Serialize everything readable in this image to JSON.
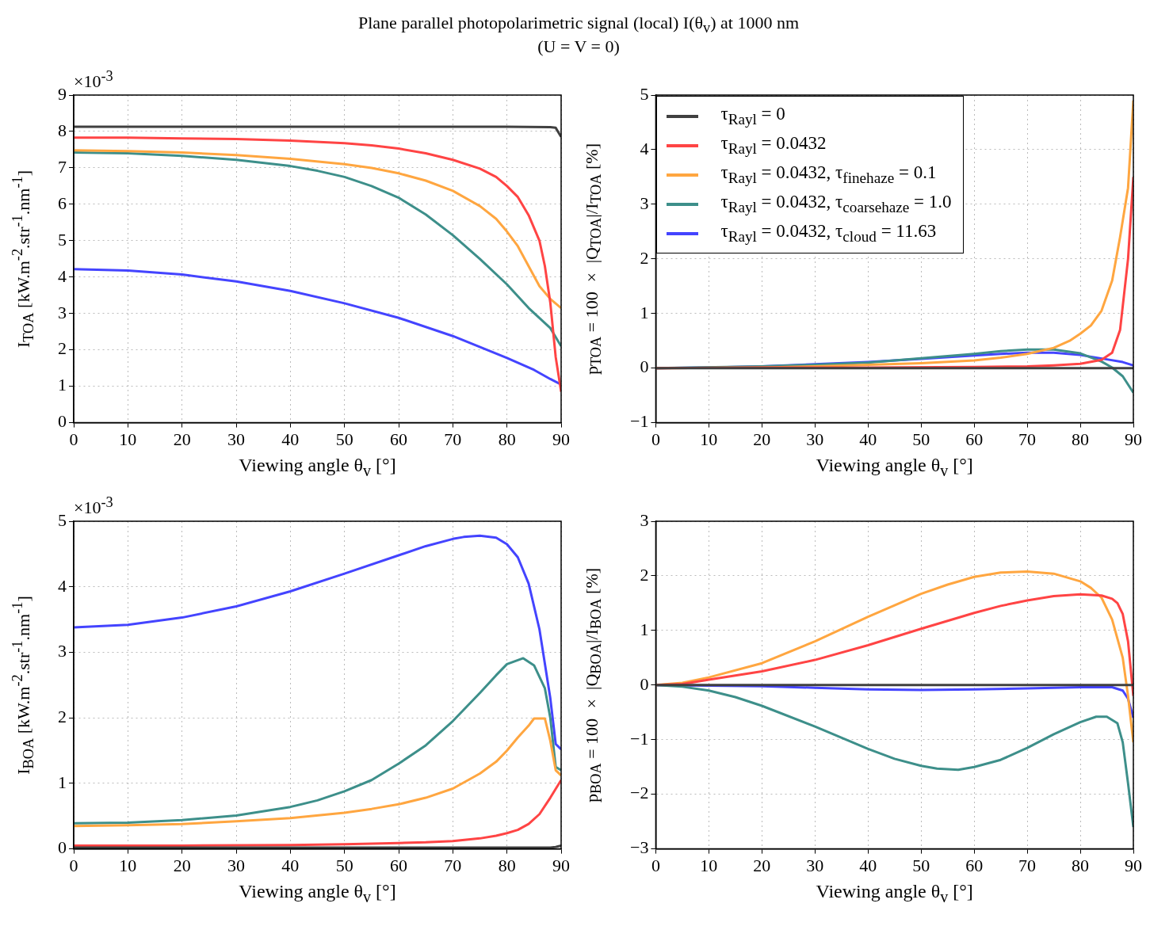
{
  "chart_data": [
    {
      "type": "line",
      "title": "Plane parallel photopolarimetric signal (local) I(θ$_{v}$) at 1000 nm",
      "subtitle": "(U = V = 0)",
      "xlabel": "Viewing angle θ$_{v}$ [°]",
      "ylabel": "I$_{TOA}$ [kW.m$^{-2}$.str$^{-1}$.nm$^{-1}$]",
      "annotations": [
        "×10$^{-3}$"
      ],
      "xlim": [
        0,
        90
      ],
      "xticks": [
        0,
        10,
        20,
        30,
        40,
        50,
        60,
        70,
        80,
        90
      ],
      "ylim": [
        0,
        9
      ],
      "yticks": [
        0,
        1,
        2,
        3,
        4,
        5,
        6,
        7,
        8,
        9
      ],
      "grid": true,
      "legend": false,
      "marker": "none",
      "line_style": "solid",
      "series": [
        {
          "color": "#404040",
          "x": [
            0,
            20,
            40,
            60,
            80,
            88,
            89,
            90
          ],
          "values": [
            8.13,
            8.13,
            8.13,
            8.13,
            8.13,
            8.12,
            8.1,
            7.85
          ]
        },
        {
          "color": "#ff4444",
          "x": [
            0,
            10,
            20,
            30,
            40,
            50,
            55,
            60,
            65,
            70,
            75,
            78,
            80,
            82,
            84,
            86,
            87,
            88,
            89,
            90
          ],
          "values": [
            7.83,
            7.83,
            7.81,
            7.79,
            7.75,
            7.68,
            7.62,
            7.53,
            7.4,
            7.22,
            6.98,
            6.75,
            6.5,
            6.2,
            5.7,
            5.0,
            4.3,
            3.3,
            1.8,
            0.85
          ]
        },
        {
          "color": "#ffa640",
          "x": [
            0,
            10,
            20,
            30,
            40,
            50,
            55,
            60,
            65,
            70,
            75,
            78,
            80,
            82,
            84,
            86,
            88,
            90
          ],
          "values": [
            7.48,
            7.46,
            7.42,
            7.35,
            7.25,
            7.1,
            7.0,
            6.85,
            6.65,
            6.37,
            5.95,
            5.6,
            5.25,
            4.85,
            4.3,
            3.75,
            3.4,
            3.15
          ]
        },
        {
          "color": "#3d8f8a",
          "x": [
            0,
            10,
            20,
            30,
            40,
            45,
            50,
            55,
            60,
            65,
            70,
            75,
            80,
            84,
            88,
            90
          ],
          "values": [
            7.42,
            7.4,
            7.33,
            7.22,
            7.05,
            6.92,
            6.75,
            6.5,
            6.18,
            5.72,
            5.15,
            4.5,
            3.8,
            3.15,
            2.6,
            2.1
          ]
        },
        {
          "color": "#4444ff",
          "x": [
            0,
            10,
            20,
            30,
            40,
            50,
            60,
            70,
            80,
            85,
            88,
            90
          ],
          "values": [
            4.22,
            4.18,
            4.07,
            3.88,
            3.62,
            3.28,
            2.88,
            2.38,
            1.78,
            1.45,
            1.2,
            1.05
          ]
        }
      ]
    },
    {
      "type": "line",
      "xlabel": "Viewing angle θ$_{v}$ [°]",
      "ylabel": "p$_{TOA}$ = 100 × |Q$_{TOA}$|/I$_{TOA}$ [%]",
      "xlim": [
        0,
        90
      ],
      "xticks": [
        0,
        10,
        20,
        30,
        40,
        50,
        60,
        70,
        80,
        90
      ],
      "ylim": [
        -1,
        5
      ],
      "yticks": [
        {
          "value": -1,
          "label": "−1"
        },
        0,
        1,
        2,
        3,
        4,
        5
      ],
      "grid": true,
      "legend": "top left",
      "marker": "none",
      "line_style": "solid",
      "series": [
        {
          "name": "τ$_{Rayl}$ = 0",
          "color": "#404040",
          "x": [
            0,
            30,
            60,
            90
          ],
          "values": [
            0,
            0,
            0,
            0
          ]
        },
        {
          "name": "τ$_{Rayl}$ = 0.0432",
          "color": "#ff4444",
          "x": [
            0,
            20,
            40,
            60,
            70,
            75,
            80,
            84,
            86,
            87.5,
            89,
            90
          ],
          "values": [
            0,
            0.01,
            0.01,
            0.02,
            0.03,
            0.05,
            0.08,
            0.15,
            0.28,
            0.7,
            2.0,
            3.5
          ]
        },
        {
          "name": "τ$_{Rayl}$ = 0.0432, τ$_{finehaze}$ = 0.1",
          "color": "#ffa640",
          "x": [
            0,
            20,
            30,
            40,
            50,
            60,
            65,
            70,
            75,
            78,
            80,
            82,
            84,
            86,
            87.5,
            89,
            90
          ],
          "values": [
            0,
            0.01,
            0.03,
            0.06,
            0.09,
            0.14,
            0.19,
            0.26,
            0.37,
            0.5,
            0.63,
            0.78,
            1.05,
            1.6,
            2.4,
            3.3,
            4.9
          ]
        },
        {
          "name": "τ$_{Rayl}$ = 0.0432, τ$_{coarsehaze}$ = 1.0",
          "color": "#3d8f8a",
          "x": [
            0,
            20,
            30,
            40,
            50,
            60,
            65,
            70,
            75,
            80,
            84,
            86,
            88,
            90
          ],
          "values": [
            0,
            0.03,
            0.06,
            0.1,
            0.18,
            0.26,
            0.31,
            0.34,
            0.34,
            0.27,
            0.12,
            0.01,
            -0.15,
            -0.45
          ]
        },
        {
          "name": "τ$_{Rayl}$ = 0.0432, τ$_{cloud}$ = 11.63",
          "color": "#4444ff",
          "x": [
            0,
            10,
            20,
            30,
            40,
            50,
            60,
            65,
            70,
            75,
            80,
            85,
            88,
            90
          ],
          "values": [
            0,
            0.01,
            0.03,
            0.07,
            0.11,
            0.17,
            0.23,
            0.26,
            0.28,
            0.28,
            0.24,
            0.16,
            0.11,
            0.05
          ]
        }
      ]
    },
    {
      "type": "line",
      "xlabel": "Viewing angle θ$_{v}$ [°]",
      "ylabel": "I$_{BOA}$ [kW.m$^{-2}$.str$^{-1}$.nm$^{-1}$]",
      "annotations": [
        "×10$^{-3}$"
      ],
      "xlim": [
        0,
        90
      ],
      "xticks": [
        0,
        10,
        20,
        30,
        40,
        50,
        60,
        70,
        80,
        90
      ],
      "ylim": [
        0,
        5
      ],
      "yticks": [
        0,
        1,
        2,
        3,
        4,
        5
      ],
      "grid": true,
      "legend": false,
      "marker": "none",
      "line_style": "solid",
      "series": [
        {
          "color": "#404040",
          "x": [
            0,
            30,
            60,
            88,
            89,
            90
          ],
          "values": [
            0.02,
            0.02,
            0.02,
            0.02,
            0.03,
            0.05
          ]
        },
        {
          "color": "#ff4444",
          "x": [
            0,
            20,
            40,
            50,
            60,
            65,
            70,
            75,
            78,
            80,
            82,
            84,
            86,
            88,
            90
          ],
          "values": [
            0.05,
            0.05,
            0.06,
            0.07,
            0.09,
            0.1,
            0.12,
            0.16,
            0.2,
            0.24,
            0.29,
            0.38,
            0.53,
            0.78,
            1.05
          ]
        },
        {
          "color": "#ffa640",
          "x": [
            0,
            10,
            20,
            30,
            40,
            50,
            55,
            60,
            65,
            70,
            75,
            78,
            80,
            82,
            84,
            85,
            87,
            88,
            89,
            90
          ],
          "values": [
            0.35,
            0.36,
            0.38,
            0.42,
            0.47,
            0.55,
            0.61,
            0.68,
            0.78,
            0.92,
            1.15,
            1.33,
            1.5,
            1.7,
            1.88,
            1.99,
            1.99,
            1.65,
            1.2,
            1.12
          ]
        },
        {
          "color": "#3d8f8a",
          "x": [
            0,
            10,
            20,
            30,
            40,
            45,
            50,
            55,
            60,
            65,
            70,
            75,
            78,
            80,
            82,
            83,
            85,
            87,
            88,
            89,
            90
          ],
          "values": [
            0.39,
            0.4,
            0.44,
            0.51,
            0.64,
            0.74,
            0.88,
            1.05,
            1.3,
            1.58,
            1.95,
            2.38,
            2.65,
            2.82,
            2.88,
            2.91,
            2.8,
            2.45,
            2.0,
            1.25,
            1.2
          ]
        },
        {
          "color": "#4444ff",
          "x": [
            0,
            10,
            20,
            30,
            40,
            50,
            60,
            65,
            70,
            72,
            75,
            78,
            80,
            82,
            84,
            86,
            88,
            89,
            90
          ],
          "values": [
            3.38,
            3.42,
            3.53,
            3.7,
            3.93,
            4.2,
            4.48,
            4.62,
            4.73,
            4.76,
            4.78,
            4.75,
            4.65,
            4.45,
            4.05,
            3.35,
            2.3,
            1.6,
            1.52
          ]
        }
      ]
    },
    {
      "type": "line",
      "xlabel": "Viewing angle θ$_{v}$ [°]",
      "ylabel": "p$_{BOA}$ = 100 × |Q$_{BOA}$|/I$_{BOA}$ [%]",
      "xlim": [
        0,
        90
      ],
      "xticks": [
        0,
        10,
        20,
        30,
        40,
        50,
        60,
        70,
        80,
        90
      ],
      "ylim": [
        -3,
        3
      ],
      "yticks": [
        {
          "value": -3,
          "label": "−3"
        },
        {
          "value": -2,
          "label": "−2"
        },
        {
          "value": -1,
          "label": "−1"
        },
        0,
        1,
        2,
        3
      ],
      "grid": true,
      "legend": false,
      "marker": "none",
      "line_style": "solid",
      "series": [
        {
          "color": "#404040",
          "x": [
            0,
            30,
            60,
            90
          ],
          "values": [
            0,
            0,
            0,
            0
          ]
        },
        {
          "color": "#ff4444",
          "x": [
            0,
            5,
            10,
            20,
            30,
            40,
            50,
            60,
            65,
            70,
            75,
            80,
            84,
            86,
            87,
            88,
            89,
            90
          ],
          "values": [
            0,
            0.02,
            0.1,
            0.25,
            0.46,
            0.73,
            1.03,
            1.32,
            1.45,
            1.55,
            1.63,
            1.66,
            1.64,
            1.58,
            1.5,
            1.3,
            0.8,
            -0.2
          ]
        },
        {
          "color": "#ffa640",
          "x": [
            0,
            5,
            10,
            20,
            30,
            40,
            50,
            55,
            60,
            65,
            70,
            75,
            80,
            82,
            84,
            86,
            88,
            89,
            90
          ],
          "values": [
            0,
            0.04,
            0.14,
            0.4,
            0.8,
            1.25,
            1.67,
            1.84,
            1.98,
            2.06,
            2.08,
            2.04,
            1.9,
            1.78,
            1.6,
            1.2,
            0.5,
            -0.2,
            -1.05
          ]
        },
        {
          "color": "#3d8f8a",
          "x": [
            0,
            5,
            10,
            15,
            20,
            30,
            40,
            45,
            50,
            53,
            57,
            60,
            65,
            70,
            75,
            80,
            83,
            85,
            87,
            88,
            89,
            90
          ],
          "values": [
            0,
            -0.03,
            -0.1,
            -0.22,
            -0.38,
            -0.76,
            -1.17,
            -1.35,
            -1.48,
            -1.53,
            -1.55,
            -1.5,
            -1.37,
            -1.15,
            -0.9,
            -0.68,
            -0.58,
            -0.58,
            -0.7,
            -1.05,
            -1.8,
            -2.6
          ]
        },
        {
          "color": "#4444ff",
          "x": [
            0,
            20,
            30,
            40,
            50,
            60,
            70,
            80,
            86,
            88,
            89,
            90
          ],
          "values": [
            0,
            -0.02,
            -0.05,
            -0.08,
            -0.09,
            -0.08,
            -0.06,
            -0.04,
            -0.04,
            -0.1,
            -0.25,
            -0.6
          ]
        }
      ]
    }
  ]
}
